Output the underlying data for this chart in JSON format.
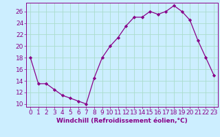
{
  "x": [
    0,
    1,
    2,
    3,
    4,
    5,
    6,
    7,
    8,
    9,
    10,
    11,
    12,
    13,
    14,
    15,
    16,
    17,
    18,
    19,
    20,
    21,
    22,
    23
  ],
  "y": [
    18,
    13.5,
    13.5,
    12.5,
    11.5,
    11,
    10.5,
    10,
    14.5,
    18,
    20,
    21.5,
    23.5,
    25,
    25,
    26,
    25.5,
    26,
    27,
    26,
    24.5,
    21,
    18,
    15
  ],
  "line_color": "#880088",
  "marker_color": "#880088",
  "bg_color": "#cceeff",
  "grid_color": "#aaddcc",
  "xlabel": "Windchill (Refroidissement éolien,°C)",
  "xlim": [
    -0.5,
    23.5
  ],
  "ylim": [
    9.5,
    27.5
  ],
  "yticks": [
    10,
    12,
    14,
    16,
    18,
    20,
    22,
    24,
    26
  ],
  "xticks": [
    0,
    1,
    2,
    3,
    4,
    5,
    6,
    7,
    8,
    9,
    10,
    11,
    12,
    13,
    14,
    15,
    16,
    17,
    18,
    19,
    20,
    21,
    22,
    23
  ],
  "xlabel_fontsize": 6.5,
  "tick_fontsize": 6.5,
  "axis_label_color": "#880088",
  "tick_color": "#880088"
}
